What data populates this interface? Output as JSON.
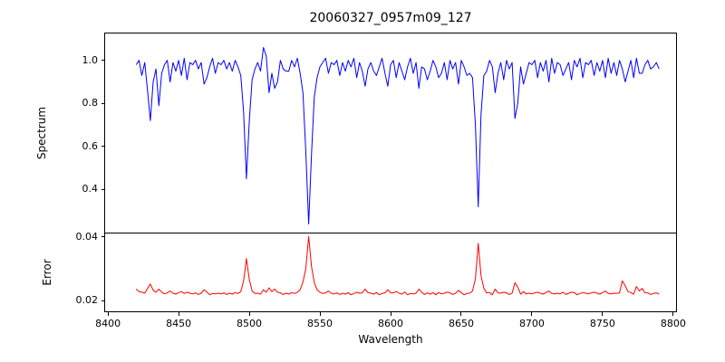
{
  "chart_data": {
    "type": "line",
    "title": "20060327_0957m09_127",
    "xlabel": "Wavelength",
    "grid": false,
    "xlim": [
      8398,
      8802
    ],
    "xticks": [
      "8400",
      "8450",
      "8500",
      "8550",
      "8600",
      "8650",
      "8700",
      "8750",
      "8800"
    ],
    "x": [
      8420,
      8422,
      8424,
      8426,
      8428,
      8430,
      8432,
      8434,
      8436,
      8438,
      8440,
      8442,
      8444,
      8446,
      8448,
      8450,
      8452,
      8454,
      8456,
      8458,
      8460,
      8462,
      8464,
      8466,
      8468,
      8470,
      8472,
      8474,
      8476,
      8478,
      8480,
      8482,
      8484,
      8486,
      8488,
      8490,
      8492,
      8494,
      8496,
      8498,
      8500,
      8502,
      8504,
      8506,
      8508,
      8510,
      8512,
      8514,
      8516,
      8518,
      8520,
      8522,
      8524,
      8526,
      8528,
      8530,
      8532,
      8534,
      8536,
      8538,
      8540,
      8542,
      8544,
      8546,
      8548,
      8550,
      8552,
      8554,
      8556,
      8558,
      8560,
      8562,
      8564,
      8566,
      8568,
      8570,
      8572,
      8574,
      8576,
      8578,
      8580,
      8582,
      8584,
      8586,
      8588,
      8590,
      8592,
      8594,
      8596,
      8598,
      8600,
      8602,
      8604,
      8606,
      8608,
      8610,
      8612,
      8614,
      8616,
      8618,
      8620,
      8622,
      8624,
      8626,
      8628,
      8630,
      8632,
      8634,
      8636,
      8638,
      8640,
      8642,
      8644,
      8646,
      8648,
      8650,
      8652,
      8654,
      8656,
      8658,
      8660,
      8662,
      8664,
      8666,
      8668,
      8670,
      8672,
      8674,
      8676,
      8678,
      8680,
      8682,
      8684,
      8686,
      8688,
      8690,
      8692,
      8694,
      8696,
      8698,
      8700,
      8702,
      8704,
      8706,
      8708,
      8710,
      8712,
      8714,
      8716,
      8718,
      8720,
      8722,
      8724,
      8726,
      8728,
      8730,
      8732,
      8734,
      8736,
      8738,
      8740,
      8742,
      8744,
      8746,
      8748,
      8750,
      8752,
      8754,
      8756,
      8758,
      8760,
      8762,
      8764,
      8766,
      8768,
      8770,
      8772,
      8774,
      8776,
      8778,
      8780,
      8782,
      8784,
      8786,
      8788,
      8790
    ],
    "panels": [
      {
        "name": "spectrum",
        "ylabel": "Spectrum",
        "color": "#0000ff",
        "ylim": [
          0.2,
          1.125
        ],
        "yticks": [
          "1.0",
          "0.8",
          "0.6",
          "0.4"
        ],
        "values": [
          0.98,
          1.0,
          0.93,
          0.99,
          0.86,
          0.72,
          0.9,
          0.96,
          0.79,
          0.94,
          0.98,
          1.0,
          0.9,
          0.99,
          0.95,
          1.0,
          0.93,
          1.01,
          0.91,
          0.99,
          0.98,
          1.0,
          0.96,
          0.99,
          0.89,
          0.92,
          0.97,
          1.01,
          0.94,
          0.99,
          0.98,
          1.0,
          0.96,
          0.99,
          0.95,
          1.0,
          0.97,
          0.93,
          0.76,
          0.45,
          0.72,
          0.91,
          0.96,
          0.99,
          0.95,
          1.06,
          1.02,
          0.85,
          0.94,
          0.87,
          0.9,
          1.0,
          0.96,
          0.95,
          0.95,
          1.0,
          0.97,
          1.01,
          0.94,
          0.85,
          0.58,
          0.24,
          0.56,
          0.83,
          0.92,
          0.97,
          0.99,
          1.01,
          0.94,
          0.99,
          0.98,
          1.0,
          0.93,
          0.99,
          0.95,
          1.0,
          0.97,
          1.01,
          0.92,
          0.99,
          0.95,
          0.88,
          0.96,
          0.99,
          0.95,
          0.93,
          0.97,
          1.01,
          0.94,
          0.88,
          0.98,
          1.0,
          0.92,
          0.99,
          0.95,
          0.91,
          0.97,
          1.01,
          0.94,
          0.99,
          0.87,
          0.97,
          0.96,
          0.91,
          0.95,
          1.0,
          0.97,
          0.92,
          0.94,
          0.99,
          0.91,
          1.0,
          0.96,
          0.99,
          0.89,
          1.0,
          0.97,
          0.93,
          0.94,
          0.92,
          0.7,
          0.32,
          0.75,
          0.93,
          0.95,
          1.0,
          0.97,
          0.85,
          0.94,
          0.99,
          0.91,
          1.0,
          0.96,
          0.99,
          0.73,
          0.8,
          0.97,
          0.89,
          0.94,
          0.99,
          0.98,
          1.0,
          0.92,
          0.99,
          0.95,
          1.0,
          0.9,
          1.01,
          0.94,
          0.99,
          0.98,
          0.93,
          0.96,
          0.99,
          0.91,
          1.0,
          0.97,
          1.01,
          0.92,
          0.99,
          0.98,
          1.0,
          0.93,
          0.99,
          0.95,
          1.0,
          0.92,
          1.01,
          0.94,
          0.99,
          0.93,
          1.0,
          0.96,
          0.9,
          0.95,
          1.0,
          0.92,
          1.01,
          0.94,
          0.94,
          0.98,
          1.0,
          0.96,
          0.97,
          0.99,
          0.96
        ]
      },
      {
        "name": "error",
        "ylabel": "Error",
        "color": "#ff0000",
        "ylim": [
          0.0166,
          0.0411
        ],
        "yticks": [
          "0.04",
          "0.02"
        ],
        "values": [
          0.0236,
          0.0228,
          0.0226,
          0.0223,
          0.0238,
          0.0252,
          0.0232,
          0.0226,
          0.0236,
          0.0226,
          0.0221,
          0.0224,
          0.023,
          0.0223,
          0.022,
          0.0225,
          0.0228,
          0.0222,
          0.0226,
          0.0223,
          0.0221,
          0.0224,
          0.0219,
          0.0223,
          0.0234,
          0.0227,
          0.0218,
          0.0222,
          0.0221,
          0.0223,
          0.0221,
          0.0224,
          0.0219,
          0.0223,
          0.022,
          0.0225,
          0.0222,
          0.0228,
          0.0262,
          0.0332,
          0.0266,
          0.023,
          0.0222,
          0.0223,
          0.022,
          0.0234,
          0.0226,
          0.024,
          0.0228,
          0.0236,
          0.0226,
          0.0224,
          0.0219,
          0.0223,
          0.022,
          0.0225,
          0.0222,
          0.0226,
          0.0234,
          0.0258,
          0.03,
          0.0402,
          0.0308,
          0.0256,
          0.0234,
          0.0226,
          0.0222,
          0.0224,
          0.023,
          0.0223,
          0.0221,
          0.0224,
          0.0219,
          0.0223,
          0.022,
          0.0225,
          0.0218,
          0.0222,
          0.0226,
          0.0223,
          0.0224,
          0.0236,
          0.0225,
          0.0223,
          0.022,
          0.0225,
          0.0218,
          0.0222,
          0.0224,
          0.0234,
          0.0224,
          0.0224,
          0.0228,
          0.0223,
          0.022,
          0.0227,
          0.0218,
          0.0222,
          0.0221,
          0.0223,
          0.0236,
          0.0226,
          0.0219,
          0.0224,
          0.022,
          0.0225,
          0.0218,
          0.0225,
          0.0221,
          0.0223,
          0.0226,
          0.0224,
          0.0219,
          0.0223,
          0.0232,
          0.0225,
          0.0218,
          0.0222,
          0.0223,
          0.023,
          0.0268,
          0.038,
          0.0278,
          0.0238,
          0.0224,
          0.0225,
          0.0218,
          0.0236,
          0.0224,
          0.0223,
          0.0226,
          0.0224,
          0.0219,
          0.0223,
          0.0256,
          0.0242,
          0.022,
          0.0228,
          0.0221,
          0.0223,
          0.0221,
          0.0224,
          0.0226,
          0.0223,
          0.022,
          0.0225,
          0.023,
          0.0222,
          0.0221,
          0.0223,
          0.0221,
          0.0226,
          0.0219,
          0.0223,
          0.0226,
          0.0225,
          0.0218,
          0.0222,
          0.0225,
          0.0223,
          0.0221,
          0.0224,
          0.0226,
          0.0223,
          0.022,
          0.0225,
          0.023,
          0.0222,
          0.0221,
          0.0223,
          0.0222,
          0.0224,
          0.0262,
          0.0246,
          0.0228,
          0.0225,
          0.022,
          0.0244,
          0.023,
          0.0238,
          0.0224,
          0.0224,
          0.0219,
          0.0222,
          0.0224,
          0.022
        ]
      }
    ]
  }
}
